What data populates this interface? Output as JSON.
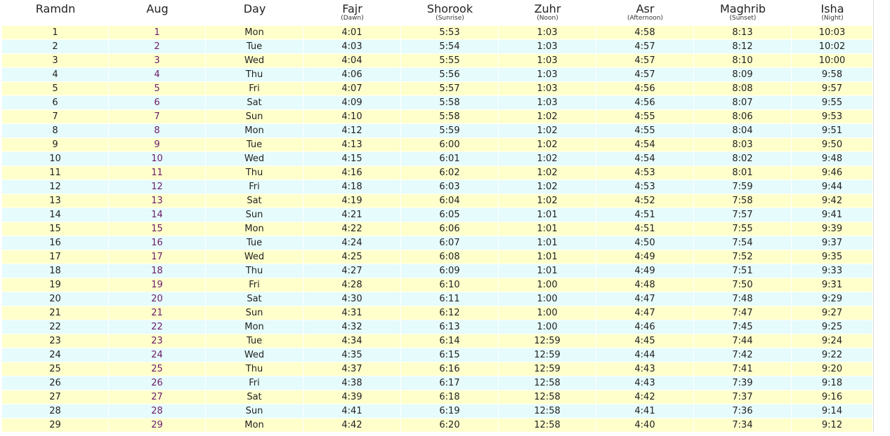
{
  "table": {
    "headers": [
      {
        "title": "Ramdn"
      },
      {
        "title": "Aug"
      },
      {
        "title": "Day"
      },
      {
        "title": "Fajr",
        "subtitle": "(Dawn)"
      },
      {
        "title": "Shorook",
        "subtitle": "(Sunrise)"
      },
      {
        "title": "Zuhr",
        "subtitle": "(Noon)"
      },
      {
        "title": "Asr",
        "subtitle": "(Afternoon)"
      },
      {
        "title": "Maghrib",
        "subtitle": "(Sunset)"
      },
      {
        "title": "Isha",
        "subtitle": "(Night)"
      }
    ],
    "rows": [
      [
        1,
        1,
        "Mon",
        "4:01",
        "5:53",
        "1:03",
        "4:58",
        "8:13",
        "10:03"
      ],
      [
        2,
        2,
        "Tue",
        "4:03",
        "5:54",
        "1:03",
        "4:57",
        "8:12",
        "10:02"
      ],
      [
        3,
        3,
        "Wed",
        "4:04",
        "5:55",
        "1:03",
        "4:57",
        "8:10",
        "10:00"
      ],
      [
        4,
        4,
        "Thu",
        "4:06",
        "5:56",
        "1:03",
        "4:57",
        "8:09",
        "9:58"
      ],
      [
        5,
        5,
        "Fri",
        "4:07",
        "5:57",
        "1:03",
        "4:56",
        "8:08",
        "9:57"
      ],
      [
        6,
        6,
        "Sat",
        "4:09",
        "5:58",
        "1:03",
        "4:56",
        "8:07",
        "9:55"
      ],
      [
        7,
        7,
        "Sun",
        "4:10",
        "5:58",
        "1:02",
        "4:55",
        "8:06",
        "9:53"
      ],
      [
        8,
        8,
        "Mon",
        "4:12",
        "5:59",
        "1:02",
        "4:55",
        "8:04",
        "9:51"
      ],
      [
        9,
        9,
        "Tue",
        "4:13",
        "6:00",
        "1:02",
        "4:54",
        "8:03",
        "9:50"
      ],
      [
        10,
        10,
        "Wed",
        "4:15",
        "6:01",
        "1:02",
        "4:54",
        "8:02",
        "9:48"
      ],
      [
        11,
        11,
        "Thu",
        "4:16",
        "6:02",
        "1:02",
        "4:53",
        "8:01",
        "9:46"
      ],
      [
        12,
        12,
        "Fri",
        "4:18",
        "6:03",
        "1:02",
        "4:53",
        "7:59",
        "9:44"
      ],
      [
        13,
        13,
        "Sat",
        "4:19",
        "6:04",
        "1:02",
        "4:52",
        "7:58",
        "9:42"
      ],
      [
        14,
        14,
        "Sun",
        "4:21",
        "6:05",
        "1:01",
        "4:51",
        "7:57",
        "9:41"
      ],
      [
        15,
        15,
        "Mon",
        "4:22",
        "6:06",
        "1:01",
        "4:51",
        "7:55",
        "9:39"
      ],
      [
        16,
        16,
        "Tue",
        "4:24",
        "6:07",
        "1:01",
        "4:50",
        "7:54",
        "9:37"
      ],
      [
        17,
        17,
        "Wed",
        "4:25",
        "6:08",
        "1:01",
        "4:49",
        "7:52",
        "9:35"
      ],
      [
        18,
        18,
        "Thu",
        "4:27",
        "6:09",
        "1:01",
        "4:49",
        "7:51",
        "9:33"
      ],
      [
        19,
        19,
        "Fri",
        "4:28",
        "6:10",
        "1:00",
        "4:48",
        "7:50",
        "9:31"
      ],
      [
        20,
        20,
        "Sat",
        "4:30",
        "6:11",
        "1:00",
        "4:47",
        "7:48",
        "9:29"
      ],
      [
        21,
        21,
        "Sun",
        "4:31",
        "6:12",
        "1:00",
        "4:47",
        "7:47",
        "9:27"
      ],
      [
        22,
        22,
        "Mon",
        "4:32",
        "6:13",
        "1:00",
        "4:46",
        "7:45",
        "9:25"
      ],
      [
        23,
        23,
        "Tue",
        "4:34",
        "6:14",
        "12:59",
        "4:45",
        "7:44",
        "9:24"
      ],
      [
        24,
        24,
        "Wed",
        "4:35",
        "6:15",
        "12:59",
        "4:44",
        "7:42",
        "9:22"
      ],
      [
        25,
        25,
        "Thu",
        "4:37",
        "6:16",
        "12:59",
        "4:43",
        "7:41",
        "9:20"
      ],
      [
        26,
        26,
        "Fri",
        "4:38",
        "6:17",
        "12:58",
        "4:43",
        "7:39",
        "9:18"
      ],
      [
        27,
        27,
        "Sat",
        "4:39",
        "6:18",
        "12:58",
        "4:42",
        "7:37",
        "9:16"
      ],
      [
        28,
        28,
        "Sun",
        "4:41",
        "6:19",
        "12:58",
        "4:41",
        "7:36",
        "9:14"
      ],
      [
        29,
        29,
        "Mon",
        "4:42",
        "6:20",
        "12:58",
        "4:40",
        "7:34",
        "9:12"
      ]
    ]
  }
}
